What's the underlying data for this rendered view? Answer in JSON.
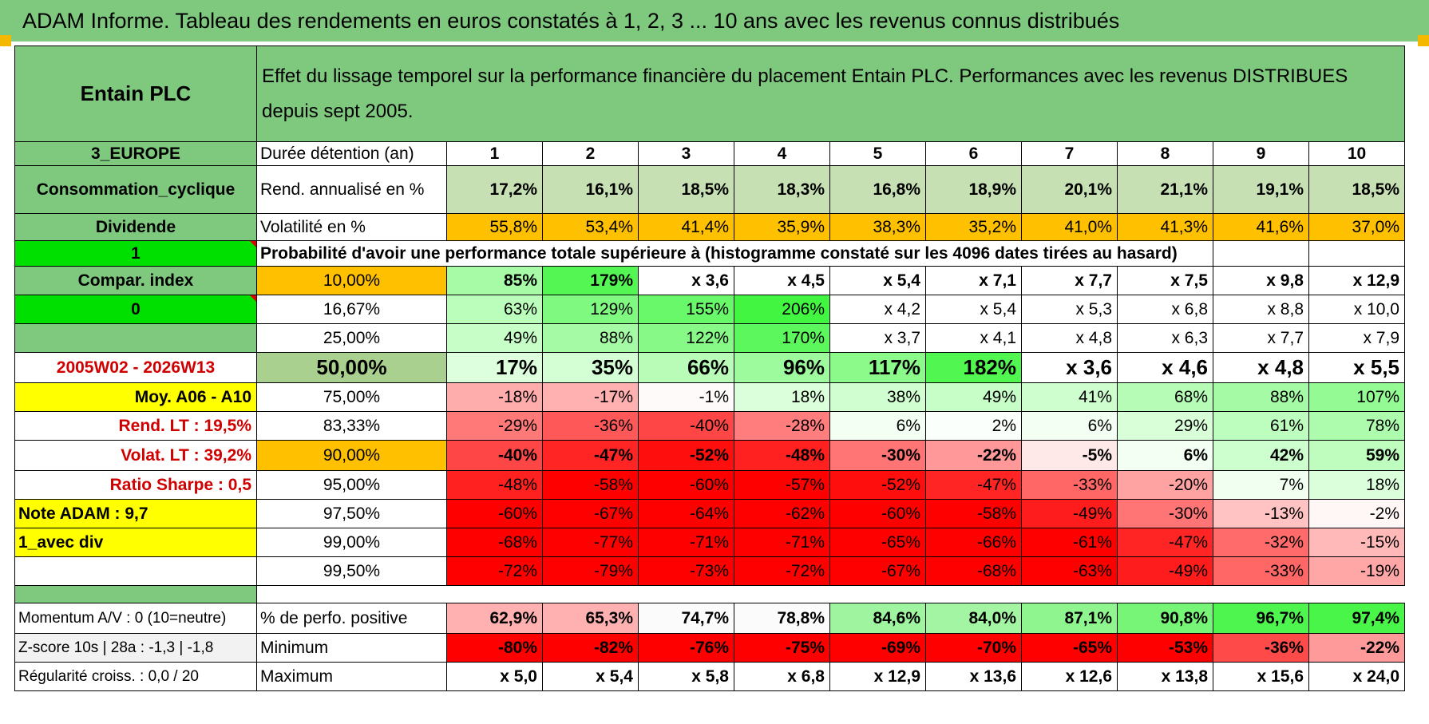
{
  "title": "ADAM Informe. Tableau des rendements en euros constatés à 1, 2, 3 ... 10 ans avec les revenus connus distribués",
  "left": {
    "name": "Entain PLC",
    "region": "3_EUROPE",
    "sector": "Consommation_cyclique",
    "dividend": "Dividende",
    "flag1": "1",
    "compar": "Compar. index",
    "flag0": "0",
    "empty": "",
    "period": "2005W02 - 2026W13",
    "moy": "Moy. A06 - A10",
    "rend_lt": "Rend. LT :    19,5%",
    "volat_lt": "Volat. LT :    39,2%",
    "sharpe": "Ratio Sharpe :    0,5",
    "note": "Note ADAM : 9,7",
    "avecdiv": "1_avec div",
    "momentum": "Momentum A/V : 0 (10=neutre)",
    "zscore": "Z-score 10s | 28a : -1,3 | -1,8",
    "regularite": "Régularité croiss. : 0,0 / 20"
  },
  "header_text": "Effet du lissage temporel sur la performance financière du placement Entain PLC. Performances avec les revenus DISTRIBUES depuis sept 2005.",
  "labels": {
    "duree": "Durée détention (an)",
    "rend": "Rend. annualisé en %",
    "volat": "Volatilité en %",
    "proba": "Probabilité d'avoir une performance totale supérieure à (histogramme constaté sur les 4096 dates tirées au hasard)",
    "perfpos": "% de perfo. positive",
    "minimum": "Minimum",
    "maximum": "Maximum"
  },
  "years": [
    "1",
    "2",
    "3",
    "4",
    "5",
    "6",
    "7",
    "8",
    "9",
    "10"
  ],
  "rend": [
    "17,2%",
    "16,1%",
    "18,5%",
    "18,3%",
    "16,8%",
    "18,9%",
    "20,1%",
    "21,1%",
    "19,1%",
    "18,5%"
  ],
  "volat": [
    "55,8%",
    "53,4%",
    "41,4%",
    "35,9%",
    "38,3%",
    "35,2%",
    "41,0%",
    "41,3%",
    "41,6%",
    "37,0%"
  ],
  "proba_rows": [
    {
      "p": "10,00%",
      "v": [
        "85%",
        "179%",
        "x 3,6",
        "x 4,5",
        "x 5,4",
        "x 7,1",
        "x 7,7",
        "x 7,5",
        "x 9,8",
        "x 12,9"
      ]
    },
    {
      "p": "16,67%",
      "v": [
        "63%",
        "129%",
        "155%",
        "206%",
        "x 4,2",
        "x 5,4",
        "x 5,3",
        "x 6,8",
        "x 8,8",
        "x 10,0"
      ]
    },
    {
      "p": "25,00%",
      "v": [
        "49%",
        "88%",
        "122%",
        "170%",
        "x 3,7",
        "x 4,1",
        "x 4,8",
        "x 6,3",
        "x 7,7",
        "x 7,9"
      ]
    },
    {
      "p": "50,00%",
      "v": [
        "17%",
        "35%",
        "66%",
        "96%",
        "117%",
        "182%",
        "x 3,6",
        "x 4,6",
        "x 4,8",
        "x 5,5"
      ]
    },
    {
      "p": "75,00%",
      "v": [
        "-18%",
        "-17%",
        "-1%",
        "18%",
        "38%",
        "49%",
        "41%",
        "68%",
        "88%",
        "107%"
      ]
    },
    {
      "p": "83,33%",
      "v": [
        "-29%",
        "-36%",
        "-40%",
        "-28%",
        "6%",
        "2%",
        "6%",
        "29%",
        "61%",
        "78%"
      ]
    },
    {
      "p": "90,00%",
      "v": [
        "-40%",
        "-47%",
        "-52%",
        "-48%",
        "-30%",
        "-22%",
        "-5%",
        "6%",
        "42%",
        "59%"
      ]
    },
    {
      "p": "95,00%",
      "v": [
        "-48%",
        "-58%",
        "-60%",
        "-57%",
        "-52%",
        "-47%",
        "-33%",
        "-20%",
        "7%",
        "18%"
      ]
    },
    {
      "p": "97,50%",
      "v": [
        "-60%",
        "-67%",
        "-64%",
        "-62%",
        "-60%",
        "-58%",
        "-49%",
        "-30%",
        "-13%",
        "-2%"
      ]
    },
    {
      "p": "99,00%",
      "v": [
        "-68%",
        "-77%",
        "-71%",
        "-71%",
        "-65%",
        "-66%",
        "-61%",
        "-47%",
        "-32%",
        "-15%"
      ]
    },
    {
      "p": "99,50%",
      "v": [
        "-72%",
        "-79%",
        "-73%",
        "-72%",
        "-67%",
        "-68%",
        "-63%",
        "-49%",
        "-33%",
        "-19%"
      ]
    }
  ],
  "perfpos": [
    "62,9%",
    "65,3%",
    "74,7%",
    "78,8%",
    "84,6%",
    "84,0%",
    "87,1%",
    "90,8%",
    "96,7%",
    "97,4%"
  ],
  "minimum": [
    "-80%",
    "-82%",
    "-76%",
    "-75%",
    "-69%",
    "-70%",
    "-65%",
    "-53%",
    "-36%",
    "-22%"
  ],
  "maximum": [
    "x 5,0",
    "x 5,4",
    "x 5,8",
    "x 6,8",
    "x 12,9",
    "x 13,6",
    "x 12,6",
    "x 13,8",
    "x 15,6",
    "x 24,0"
  ],
  "colors": {
    "header_green": "#7fc97f",
    "bright_green": "#00e000",
    "orange": "#ffc000",
    "yellow": "#ffff00",
    "red_text": "#d00000"
  }
}
